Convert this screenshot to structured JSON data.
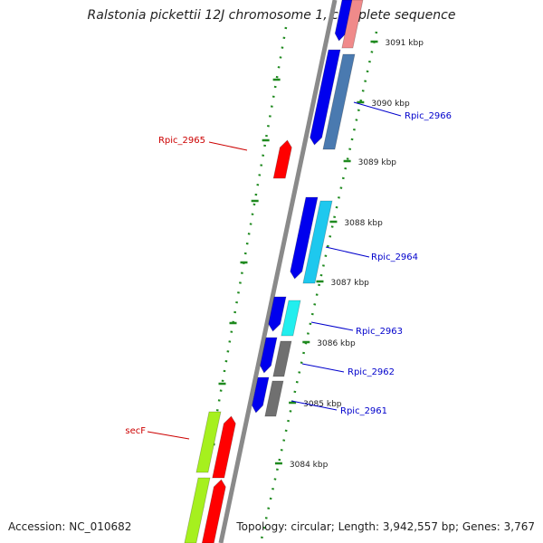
{
  "header": {
    "title": "Ralstonia pickettii 12J chromosome 1, complete sequence"
  },
  "footer": {
    "accession": "Accession: NC_010682",
    "topology": "Topology: circular; Length: 3,942,557 bp; Genes: 3,767"
  },
  "ruler": {
    "labels": [
      "3091 kbp",
      "3090 kbp",
      "3089 kbp",
      "3088 kbp",
      "3087 kbp",
      "3086 kbp",
      "3085 kbp",
      "3084 kbp"
    ]
  },
  "gene_labels": [
    {
      "text": "Rpic_2966",
      "color": "#0000cc"
    },
    {
      "text": "Rpic_2965",
      "color": "#cc0000"
    },
    {
      "text": "Rpic_2964",
      "color": "#0000cc"
    },
    {
      "text": "Rpic_2963",
      "color": "#0000cc"
    },
    {
      "text": "Rpic_2962",
      "color": "#0000cc"
    },
    {
      "text": "Rpic_2961",
      "color": "#0000cc"
    },
    {
      "text": "secF",
      "color": "#cc0000"
    }
  ],
  "colors": {
    "backbone": "#8a8a8a",
    "ruler": "#1f8a1f",
    "forward_gene": "#ff0000",
    "reverse_gene": "#0000ee",
    "cog_steelblue": "#4a7ab0",
    "cog_skyblue": "#1ec8ee",
    "cog_cyan": "#22eeee",
    "cog_gray": "#707070",
    "cog_yellowgreen": "#a6f01e",
    "cog_pink": "#f08a8a"
  }
}
